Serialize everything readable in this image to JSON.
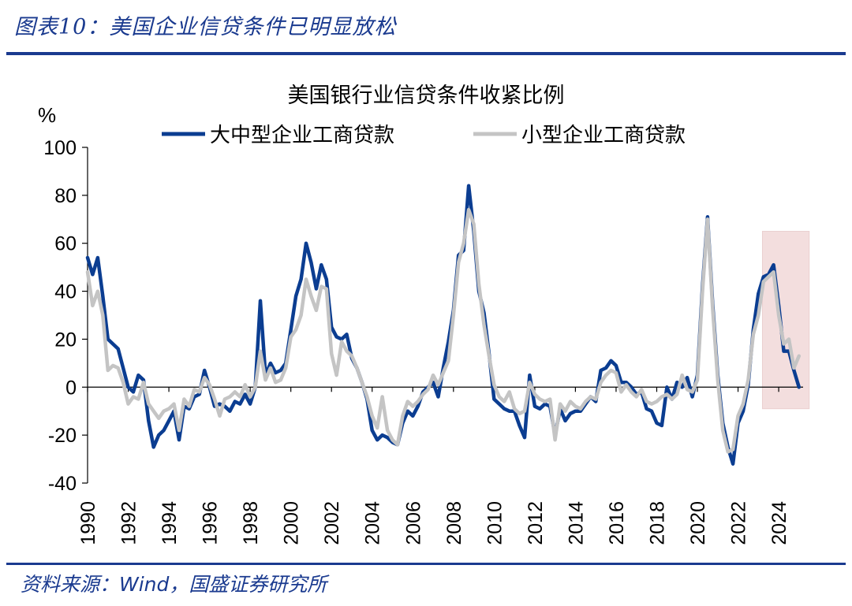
{
  "figure_caption": "图表10：美国企业信贷条件已明显放松",
  "source_note": "资料来源：Wind，国盛证券研究所",
  "colors": {
    "brand": "#1a3a8f",
    "series_large": "#0b3d91",
    "series_small": "#c4c4c4",
    "highlight": "#f3dede"
  },
  "chart_data": {
    "type": "line",
    "title": "美国银行业信贷条件收紧比例",
    "ylabel": "%",
    "ylim": [
      -40,
      100
    ],
    "yticks": [
      -40,
      -20,
      0,
      20,
      40,
      60,
      80,
      100
    ],
    "xlim": [
      1990,
      2025.2
    ],
    "xticks": [
      "1990",
      "1992",
      "1994",
      "1996",
      "1998",
      "2000",
      "2002",
      "2004",
      "2006",
      "2008",
      "2010",
      "2012",
      "2014",
      "2016",
      "2018",
      "2020",
      "2022",
      "2024"
    ],
    "legend_position": "top",
    "highlight_range": {
      "x": [
        2023.2,
        2025.5
      ],
      "y": [
        -9,
        65
      ]
    },
    "series": [
      {
        "name": "大中型企业工商贷款",
        "points": [
          [
            1990.0,
            54
          ],
          [
            1990.25,
            47
          ],
          [
            1990.5,
            54
          ],
          [
            1990.75,
            38
          ],
          [
            1991.0,
            20
          ],
          [
            1991.25,
            18
          ],
          [
            1991.5,
            16
          ],
          [
            1991.75,
            8
          ],
          [
            1992.0,
            0
          ],
          [
            1992.25,
            -2
          ],
          [
            1992.5,
            5
          ],
          [
            1992.75,
            3
          ],
          [
            1993.0,
            -14
          ],
          [
            1993.25,
            -25
          ],
          [
            1993.5,
            -20
          ],
          [
            1993.75,
            -18
          ],
          [
            1994.0,
            -14
          ],
          [
            1994.25,
            -10
          ],
          [
            1994.5,
            -22
          ],
          [
            1994.75,
            -8
          ],
          [
            1995.0,
            -9
          ],
          [
            1995.25,
            -4
          ],
          [
            1995.5,
            -3
          ],
          [
            1995.75,
            7
          ],
          [
            1996.0,
            0
          ],
          [
            1996.25,
            -8
          ],
          [
            1996.5,
            -7
          ],
          [
            1996.75,
            -8
          ],
          [
            1997.0,
            -10
          ],
          [
            1997.25,
            -6
          ],
          [
            1997.5,
            -7
          ],
          [
            1997.75,
            -3
          ],
          [
            1998.0,
            -7
          ],
          [
            1998.25,
            0
          ],
          [
            1998.5,
            36
          ],
          [
            1998.75,
            5
          ],
          [
            1999.0,
            10
          ],
          [
            1999.25,
            6
          ],
          [
            1999.5,
            7
          ],
          [
            1999.75,
            10
          ],
          [
            2000.0,
            24
          ],
          [
            2000.25,
            38
          ],
          [
            2000.5,
            45
          ],
          [
            2000.75,
            60
          ],
          [
            2001.0,
            52
          ],
          [
            2001.25,
            41
          ],
          [
            2001.5,
            51
          ],
          [
            2001.75,
            45
          ],
          [
            2002.0,
            25
          ],
          [
            2002.25,
            21
          ],
          [
            2002.5,
            20
          ],
          [
            2002.75,
            22
          ],
          [
            2003.0,
            12
          ],
          [
            2003.25,
            8
          ],
          [
            2003.5,
            2
          ],
          [
            2003.75,
            -5
          ],
          [
            2004.0,
            -18
          ],
          [
            2004.25,
            -22
          ],
          [
            2004.5,
            -20
          ],
          [
            2004.75,
            -21
          ],
          [
            2005.0,
            -23
          ],
          [
            2005.25,
            -24
          ],
          [
            2005.5,
            -15
          ],
          [
            2005.75,
            -10
          ],
          [
            2006.0,
            -12
          ],
          [
            2006.25,
            -8
          ],
          [
            2006.5,
            -2
          ],
          [
            2006.75,
            0
          ],
          [
            2007.0,
            2
          ],
          [
            2007.25,
            -4
          ],
          [
            2007.5,
            8
          ],
          [
            2007.75,
            19
          ],
          [
            2008.0,
            32
          ],
          [
            2008.25,
            55
          ],
          [
            2008.5,
            57
          ],
          [
            2008.75,
            84
          ],
          [
            2009.0,
            65
          ],
          [
            2009.25,
            40
          ],
          [
            2009.5,
            31
          ],
          [
            2009.75,
            14
          ],
          [
            2010.0,
            -5
          ],
          [
            2010.25,
            -7
          ],
          [
            2010.5,
            -9
          ],
          [
            2010.75,
            -10
          ],
          [
            2011.0,
            -10
          ],
          [
            2011.25,
            -16
          ],
          [
            2011.5,
            -21
          ],
          [
            2011.75,
            5
          ],
          [
            2012.0,
            -8
          ],
          [
            2012.25,
            -9
          ],
          [
            2012.5,
            -7
          ],
          [
            2012.75,
            -8
          ],
          [
            2013.0,
            -20
          ],
          [
            2013.25,
            -9
          ],
          [
            2013.5,
            -14
          ],
          [
            2013.75,
            -11
          ],
          [
            2014.0,
            -10
          ],
          [
            2014.25,
            -10
          ],
          [
            2014.5,
            -7
          ],
          [
            2014.75,
            -4
          ],
          [
            2015.0,
            -6
          ],
          [
            2015.25,
            7
          ],
          [
            2015.5,
            8
          ],
          [
            2015.75,
            11
          ],
          [
            2016.0,
            9
          ],
          [
            2016.25,
            2
          ],
          [
            2016.5,
            2
          ],
          [
            2016.75,
            0
          ],
          [
            2017.0,
            -3
          ],
          [
            2017.25,
            -2
          ],
          [
            2017.5,
            -9
          ],
          [
            2017.75,
            -10
          ],
          [
            2018.0,
            -15
          ],
          [
            2018.25,
            -16
          ],
          [
            2018.5,
            0
          ],
          [
            2018.75,
            -5
          ],
          [
            2019.0,
            2
          ],
          [
            2019.25,
            0
          ],
          [
            2019.5,
            4
          ],
          [
            2019.75,
            -4
          ],
          [
            2020.0,
            5
          ],
          [
            2020.25,
            42
          ],
          [
            2020.5,
            71
          ],
          [
            2020.75,
            35
          ],
          [
            2021.0,
            5
          ],
          [
            2021.25,
            -15
          ],
          [
            2021.5,
            -25
          ],
          [
            2021.75,
            -32
          ],
          [
            2022.0,
            -15
          ],
          [
            2022.25,
            -10
          ],
          [
            2022.5,
            1
          ],
          [
            2022.75,
            24
          ],
          [
            2023.0,
            39
          ],
          [
            2023.25,
            46
          ],
          [
            2023.5,
            47
          ],
          [
            2023.75,
            51
          ],
          [
            2024.0,
            34
          ],
          [
            2024.25,
            15
          ],
          [
            2024.5,
            15
          ],
          [
            2024.75,
            7
          ],
          [
            2025.0,
            0
          ]
        ]
      },
      {
        "name": "小型企业工商贷款",
        "points": [
          [
            1990.0,
            48
          ],
          [
            1990.25,
            34
          ],
          [
            1990.5,
            40
          ],
          [
            1990.75,
            30
          ],
          [
            1991.0,
            7
          ],
          [
            1991.25,
            9
          ],
          [
            1991.5,
            8
          ],
          [
            1991.75,
            2
          ],
          [
            1992.0,
            -7
          ],
          [
            1992.25,
            -4
          ],
          [
            1992.5,
            -5
          ],
          [
            1992.75,
            2
          ],
          [
            1993.0,
            -7
          ],
          [
            1993.25,
            -10
          ],
          [
            1993.5,
            -13
          ],
          [
            1993.75,
            -10
          ],
          [
            1994.0,
            -9
          ],
          [
            1994.25,
            -7
          ],
          [
            1994.5,
            -18
          ],
          [
            1994.75,
            -5
          ],
          [
            1995.0,
            -8
          ],
          [
            1995.25,
            -1
          ],
          [
            1995.5,
            -2
          ],
          [
            1995.75,
            4
          ],
          [
            1996.0,
            1
          ],
          [
            1996.25,
            -5
          ],
          [
            1996.5,
            -12
          ],
          [
            1996.75,
            -5
          ],
          [
            1997.0,
            -4
          ],
          [
            1997.25,
            -2
          ],
          [
            1997.5,
            -4
          ],
          [
            1997.75,
            1
          ],
          [
            1998.0,
            -4
          ],
          [
            1998.25,
            0
          ],
          [
            1998.5,
            15
          ],
          [
            1998.75,
            3
          ],
          [
            1999.0,
            8
          ],
          [
            1999.25,
            2
          ],
          [
            1999.5,
            3
          ],
          [
            1999.75,
            8
          ],
          [
            2000.0,
            21
          ],
          [
            2000.25,
            24
          ],
          [
            2000.5,
            30
          ],
          [
            2000.75,
            45
          ],
          [
            2001.0,
            38
          ],
          [
            2001.25,
            32
          ],
          [
            2001.5,
            42
          ],
          [
            2001.75,
            41
          ],
          [
            2002.0,
            14
          ],
          [
            2002.25,
            5
          ],
          [
            2002.5,
            19
          ],
          [
            2002.75,
            15
          ],
          [
            2003.0,
            13
          ],
          [
            2003.25,
            8
          ],
          [
            2003.5,
            2
          ],
          [
            2003.75,
            -4
          ],
          [
            2004.0,
            -12
          ],
          [
            2004.25,
            -17
          ],
          [
            2004.5,
            -4
          ],
          [
            2004.75,
            -18
          ],
          [
            2005.0,
            -22
          ],
          [
            2005.25,
            -24
          ],
          [
            2005.5,
            -12
          ],
          [
            2005.75,
            -6
          ],
          [
            2006.0,
            -8
          ],
          [
            2006.25,
            -6
          ],
          [
            2006.5,
            -3
          ],
          [
            2006.75,
            -1
          ],
          [
            2007.0,
            5
          ],
          [
            2007.25,
            1
          ],
          [
            2007.5,
            6
          ],
          [
            2007.75,
            11
          ],
          [
            2008.0,
            30
          ],
          [
            2008.25,
            52
          ],
          [
            2008.5,
            60
          ],
          [
            2008.75,
            74
          ],
          [
            2009.0,
            68
          ],
          [
            2009.25,
            43
          ],
          [
            2009.5,
            26
          ],
          [
            2009.75,
            13
          ],
          [
            2010.0,
            1
          ],
          [
            2010.25,
            -4
          ],
          [
            2010.5,
            -6
          ],
          [
            2010.75,
            -2
          ],
          [
            2011.0,
            -9
          ],
          [
            2011.25,
            -11
          ],
          [
            2011.5,
            -10
          ],
          [
            2011.75,
            2
          ],
          [
            2012.0,
            -3
          ],
          [
            2012.25,
            -5
          ],
          [
            2012.5,
            -6
          ],
          [
            2012.75,
            -5
          ],
          [
            2013.0,
            -22
          ],
          [
            2013.25,
            -7
          ],
          [
            2013.5,
            -10
          ],
          [
            2013.75,
            -6
          ],
          [
            2014.0,
            -8
          ],
          [
            2014.25,
            -9
          ],
          [
            2014.5,
            -6
          ],
          [
            2014.75,
            -4
          ],
          [
            2015.0,
            -5
          ],
          [
            2015.25,
            2
          ],
          [
            2015.5,
            5
          ],
          [
            2015.75,
            7
          ],
          [
            2016.0,
            6
          ],
          [
            2016.25,
            -2
          ],
          [
            2016.5,
            1
          ],
          [
            2016.75,
            -2
          ],
          [
            2017.0,
            -4
          ],
          [
            2017.25,
            -1
          ],
          [
            2017.5,
            -6
          ],
          [
            2017.75,
            -7
          ],
          [
            2018.0,
            -6
          ],
          [
            2018.25,
            -4
          ],
          [
            2018.5,
            -3
          ],
          [
            2018.75,
            -5
          ],
          [
            2019.0,
            -3
          ],
          [
            2019.25,
            5
          ],
          [
            2019.5,
            -1
          ],
          [
            2019.75,
            -2
          ],
          [
            2020.0,
            3
          ],
          [
            2020.25,
            40
          ],
          [
            2020.5,
            70
          ],
          [
            2020.75,
            33
          ],
          [
            2021.0,
            3
          ],
          [
            2021.25,
            -18
          ],
          [
            2021.5,
            -27
          ],
          [
            2021.75,
            -26
          ],
          [
            2022.0,
            -12
          ],
          [
            2022.25,
            -7
          ],
          [
            2022.5,
            3
          ],
          [
            2022.75,
            22
          ],
          [
            2023.0,
            30
          ],
          [
            2023.25,
            44
          ],
          [
            2023.5,
            46
          ],
          [
            2023.75,
            48
          ],
          [
            2024.0,
            30
          ],
          [
            2024.25,
            18
          ],
          [
            2024.5,
            20
          ],
          [
            2024.75,
            8
          ],
          [
            2025.0,
            13
          ]
        ]
      }
    ]
  }
}
